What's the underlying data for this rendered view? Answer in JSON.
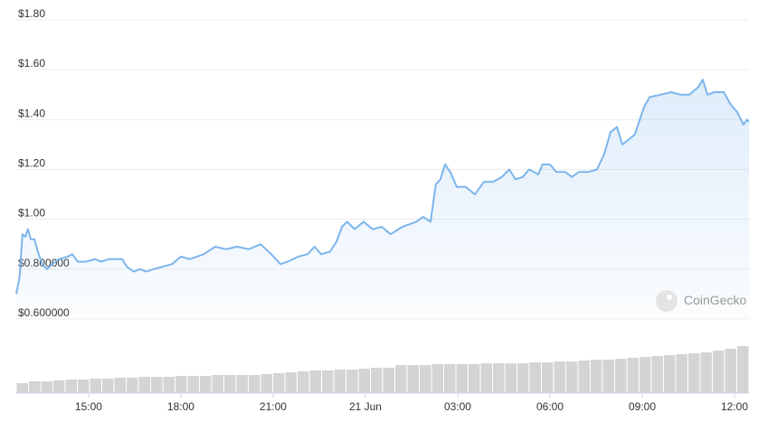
{
  "chart_data": {
    "type": "line",
    "color": "#7cb5ec",
    "x": [
      12.65,
      12.76,
      12.85,
      12.94,
      13.03,
      13.12,
      13.24,
      13.35,
      13.5,
      13.65,
      13.82,
      14.03,
      14.32,
      14.47,
      14.65,
      14.91,
      15.21,
      15.41,
      15.65,
      16.09,
      16.24,
      16.47,
      16.68,
      16.88,
      17.12,
      17.41,
      17.71,
      18.0,
      18.29,
      18.74,
      19.12,
      19.47,
      19.82,
      20.21,
      20.59,
      20.94,
      21.24,
      21.47,
      21.82,
      22.12,
      22.35,
      22.56,
      22.85,
      23.06,
      23.24,
      23.41,
      23.65,
      23.94,
      24.24,
      24.53,
      24.82,
      25.21,
      25.65,
      25.88,
      26.12,
      26.29,
      26.44,
      26.59,
      26.76,
      26.97,
      27.26,
      27.56,
      27.85,
      28.15,
      28.44,
      28.68,
      28.88,
      29.12,
      29.32,
      29.62,
      29.76,
      30.0,
      30.21,
      30.5,
      30.71,
      30.94,
      31.24,
      31.53,
      31.76,
      31.97,
      32.18,
      32.35,
      32.56,
      32.76,
      33.06,
      33.24,
      33.59,
      33.94,
      34.24,
      34.53,
      34.82,
      34.97,
      35.12,
      35.35,
      35.65,
      35.88,
      36.09,
      36.29,
      36.41,
      36.47
    ],
    "values": [
      0.7,
      0.77,
      0.94,
      0.93,
      0.96,
      0.92,
      0.92,
      0.87,
      0.82,
      0.8,
      0.82,
      0.84,
      0.85,
      0.86,
      0.83,
      0.83,
      0.84,
      0.83,
      0.84,
      0.84,
      0.81,
      0.79,
      0.8,
      0.79,
      0.8,
      0.81,
      0.82,
      0.85,
      0.84,
      0.86,
      0.89,
      0.88,
      0.89,
      0.88,
      0.9,
      0.86,
      0.82,
      0.83,
      0.85,
      0.86,
      0.89,
      0.86,
      0.87,
      0.91,
      0.97,
      0.99,
      0.96,
      0.99,
      0.96,
      0.97,
      0.94,
      0.97,
      0.99,
      1.01,
      0.99,
      1.14,
      1.16,
      1.22,
      1.19,
      1.13,
      1.13,
      1.1,
      1.15,
      1.15,
      1.17,
      1.2,
      1.16,
      1.17,
      1.2,
      1.18,
      1.22,
      1.22,
      1.19,
      1.19,
      1.17,
      1.19,
      1.19,
      1.2,
      1.26,
      1.35,
      1.37,
      1.3,
      1.32,
      1.34,
      1.45,
      1.49,
      1.5,
      1.51,
      1.5,
      1.5,
      1.53,
      1.56,
      1.5,
      1.51,
      1.51,
      1.46,
      1.43,
      1.38,
      1.4,
      1.39
    ],
    "xlim": [
      12.65,
      36.47
    ],
    "xticks": [
      {
        "value": 15,
        "label": "15:00"
      },
      {
        "value": 18,
        "label": "18:00"
      },
      {
        "value": 21,
        "label": "21:00"
      },
      {
        "value": 24,
        "label": "21 Jun"
      },
      {
        "value": 27,
        "label": "03:00"
      },
      {
        "value": 30,
        "label": "06:00"
      },
      {
        "value": 33,
        "label": "09:00"
      },
      {
        "value": 36,
        "label": "12:00"
      }
    ],
    "ylim": [
      0.6,
      1.8
    ],
    "yticks": [
      {
        "value": 0.6,
        "label": "$0.600000"
      },
      {
        "value": 0.8,
        "label": "$0.800000"
      },
      {
        "value": 1.0,
        "label": "$1.00"
      },
      {
        "value": 1.2,
        "label": "$1.20"
      },
      {
        "value": 1.4,
        "label": "$1.40"
      },
      {
        "value": 1.6,
        "label": "$1.60"
      },
      {
        "value": 1.8,
        "label": "$1.80"
      }
    ],
    "grid": true,
    "watermark": "CoinGecko",
    "volume": {
      "type": "bar",
      "color": "#d4d4d4",
      "ylim": [
        0,
        52
      ],
      "values": [
        11,
        13,
        13,
        14,
        15,
        15,
        16,
        16,
        17,
        17,
        18,
        18,
        18,
        19,
        19,
        19,
        20,
        20,
        20,
        20,
        21,
        22,
        23,
        24,
        25,
        25,
        26,
        26,
        27,
        28,
        28,
        31,
        31,
        31,
        32,
        32,
        32,
        32,
        33,
        33,
        33,
        33,
        34,
        34,
        35,
        35,
        36,
        37,
        37,
        38,
        39,
        40,
        41,
        42,
        43,
        44,
        45,
        47,
        49,
        52
      ]
    }
  }
}
